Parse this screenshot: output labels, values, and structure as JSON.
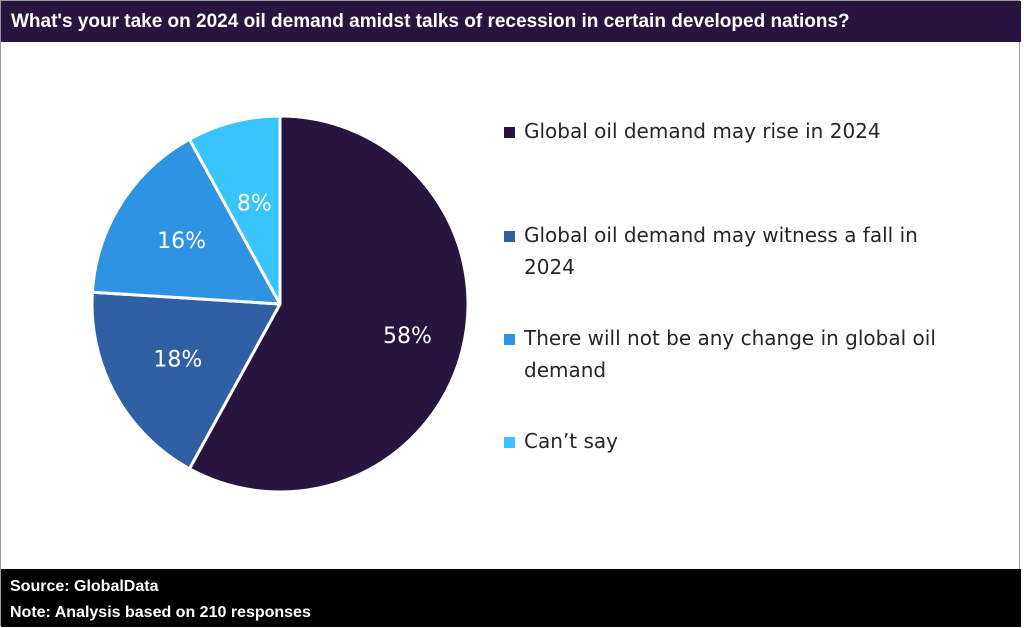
{
  "header": {
    "title": "What's your take on 2024 oil demand amidst talks of recession in certain developed nations?"
  },
  "chart_data": {
    "type": "pie",
    "title": "What's your take on 2024 oil demand amidst talks of recession in certain developed nations?",
    "legend_position": "right",
    "slices": [
      {
        "label": "Global oil demand may rise in 2024",
        "value": 58,
        "value_label": "58%",
        "color": "#271540"
      },
      {
        "label": "Global oil demand may witness a fall in 2024",
        "value": 18,
        "value_label": "18%",
        "color": "#3060A3"
      },
      {
        "label": "There will not be any change in global oil demand",
        "value": 16,
        "value_label": "16%",
        "color": "#2E93E3"
      },
      {
        "label": "Can’t say",
        "value": 8,
        "value_label": "8%",
        "color": "#3AC4FD"
      }
    ]
  },
  "legend": {
    "items": [
      "Global oil demand may rise in 2024",
      "Global oil demand may witness a fall in 2024",
      "There will not be any change in global oil demand",
      "Can’t say"
    ]
  },
  "footer": {
    "source": "Source: GlobalData",
    "note": "Note: Analysis based on 210 responses"
  }
}
